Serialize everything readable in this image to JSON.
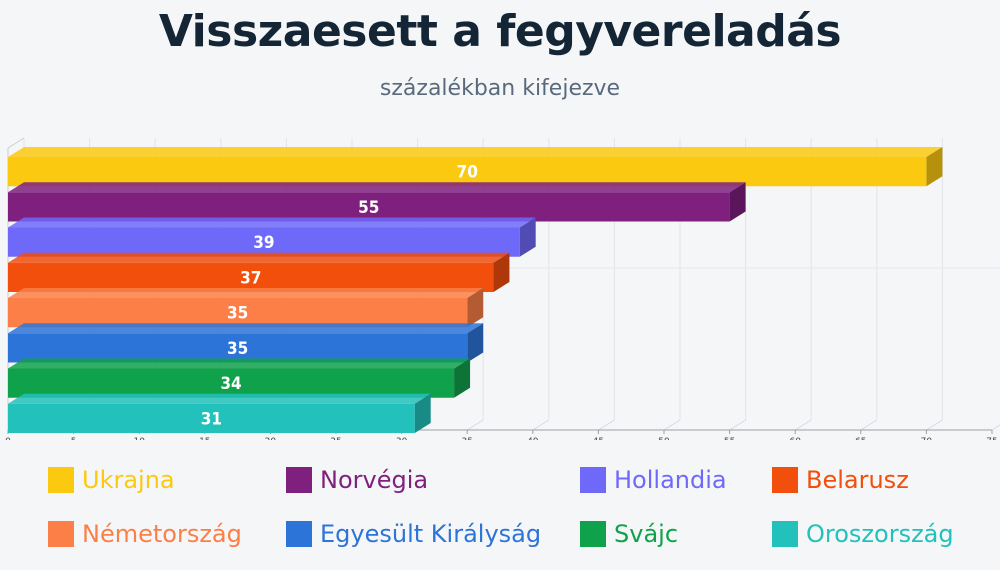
{
  "title": "Visszaesett a fegyvereladás",
  "subtitle": "százalékban kifejezve",
  "chart_data": {
    "type": "bar",
    "orientation": "horizontal",
    "style": "3d",
    "categories": [
      "Ukrajna",
      "Norvégia",
      "Hollandia",
      "Belarusz",
      "Németország",
      "Egyesült Királyság",
      "Svájc",
      "Oroszország"
    ],
    "values": [
      70,
      55,
      39,
      37,
      35,
      35,
      34,
      31
    ],
    "colors": [
      "#fcc911",
      "#7f1f7e",
      "#6f69fa",
      "#f24e0c",
      "#fb7f47",
      "#2d74d8",
      "#10a14b",
      "#22c1bb"
    ],
    "xlim": [
      0,
      75
    ],
    "xticks": [
      "0",
      "5",
      "10",
      "15",
      "20",
      "25",
      "30",
      "35",
      "40",
      "45",
      "50",
      "55",
      "60",
      "65",
      "70",
      "75"
    ],
    "grid": true,
    "legend_position": "bottom",
    "xlabel": "",
    "ylabel": ""
  }
}
